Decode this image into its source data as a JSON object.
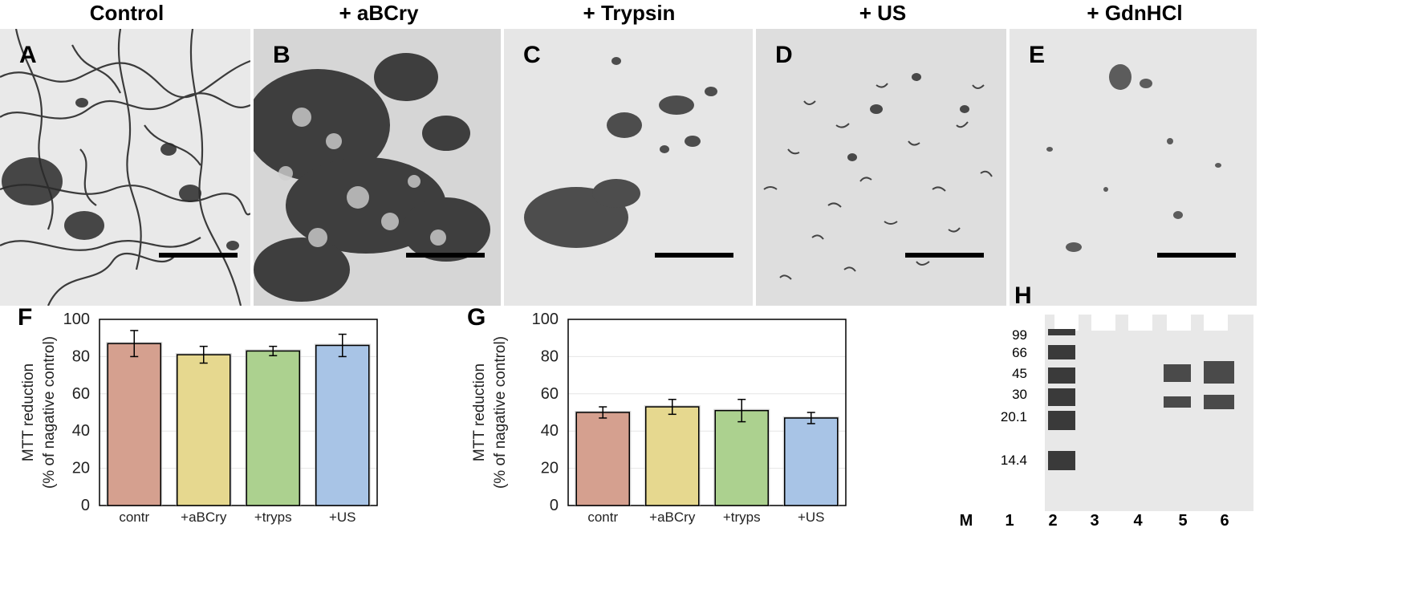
{
  "figure": {
    "em_panels": [
      {
        "letter": "A",
        "title": "Control",
        "id": "control"
      },
      {
        "letter": "B",
        "title": "+ aBCry",
        "id": "abcry"
      },
      {
        "letter": "C",
        "title": "+ Trypsin",
        "id": "trypsin"
      },
      {
        "letter": "D",
        "title": "+ US",
        "id": "us"
      },
      {
        "letter": "E",
        "title": "+ GdnHCl",
        "id": "gdnhcl"
      }
    ],
    "gel": {
      "letter": "H",
      "markers": [
        "99",
        "66",
        "45",
        "30",
        "20.1",
        "14.4"
      ],
      "lanes": [
        "M",
        "1",
        "2",
        "3",
        "4",
        "5",
        "6"
      ]
    }
  },
  "colors": {
    "bar_fill": [
      "#d5a08f",
      "#e6d88f",
      "#acd18f",
      "#a8c4e6"
    ],
    "bar_stroke": "#000000",
    "grid": "#e6e6e6"
  },
  "chart_data": [
    {
      "panel": "F",
      "type": "bar",
      "categories": [
        "contr",
        "+aBCry",
        "+tryps",
        "+US"
      ],
      "values": [
        87,
        81,
        83,
        86
      ],
      "errors": [
        7,
        4.5,
        2.5,
        6
      ],
      "ylabel": [
        "MTT reduction",
        "(% of nagative control)"
      ],
      "ylim": [
        0,
        100
      ],
      "yticks": [
        0,
        20,
        40,
        60,
        80,
        100
      ],
      "grid": true
    },
    {
      "panel": "G",
      "type": "bar",
      "categories": [
        "contr",
        "+aBCry",
        "+tryps",
        "+US"
      ],
      "values": [
        50,
        53,
        51,
        47
      ],
      "errors": [
        3,
        4,
        6,
        3
      ],
      "ylabel": [
        "MTT reduction",
        "(% of nagative control)"
      ],
      "ylim": [
        0,
        100
      ],
      "yticks": [
        0,
        20,
        40,
        60,
        80,
        100
      ],
      "grid": true
    }
  ]
}
